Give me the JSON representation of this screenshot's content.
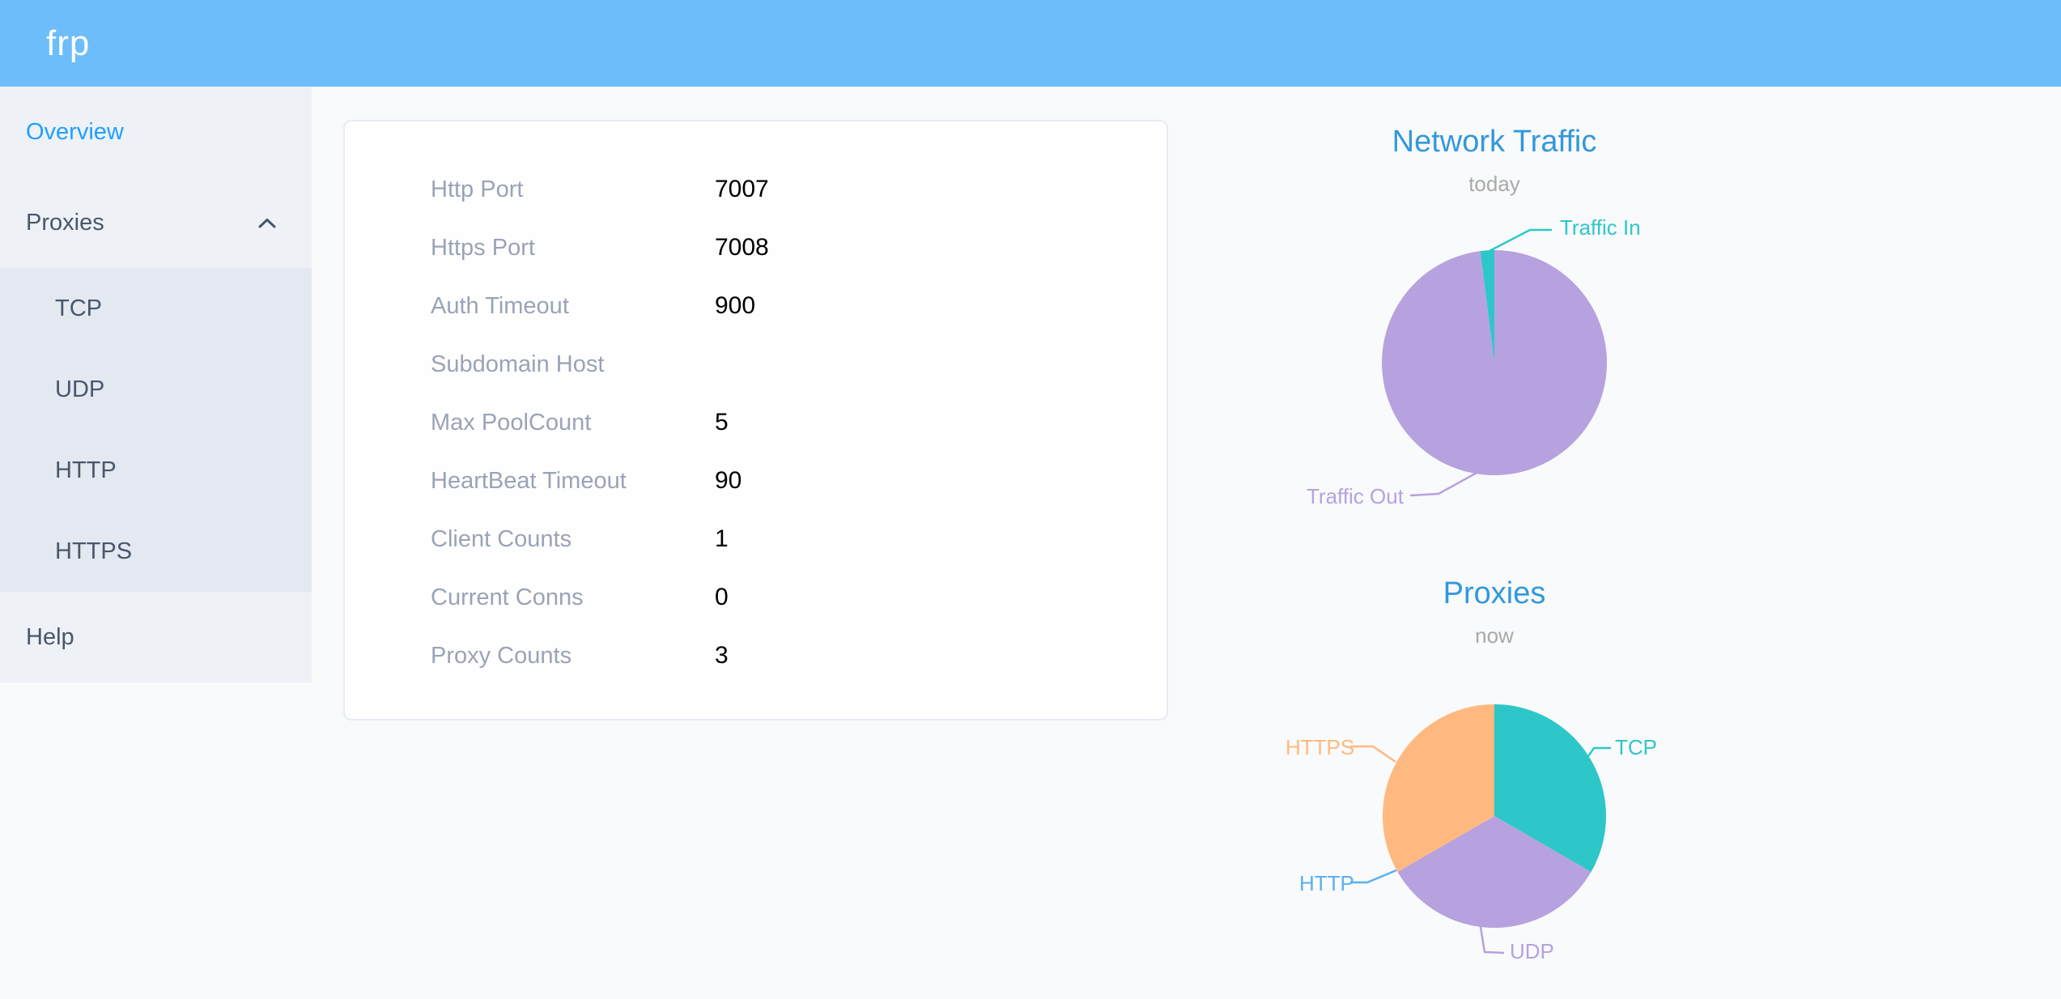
{
  "header": {
    "logo": "frp"
  },
  "sidebar": {
    "items": [
      {
        "label": "Overview",
        "active": true
      },
      {
        "label": "Proxies",
        "expanded": true,
        "children": [
          "TCP",
          "UDP",
          "HTTP",
          "HTTPS"
        ]
      },
      {
        "label": "Help"
      }
    ]
  },
  "server_info": {
    "rows": [
      {
        "label": "Http Port",
        "value": "7007"
      },
      {
        "label": "Https Port",
        "value": "7008"
      },
      {
        "label": "Auth Timeout",
        "value": "900"
      },
      {
        "label": "Subdomain Host",
        "value": ""
      },
      {
        "label": "Max PoolCount",
        "value": "5"
      },
      {
        "label": "HeartBeat Timeout",
        "value": "90"
      },
      {
        "label": "Client Counts",
        "value": "1"
      },
      {
        "label": "Current Conns",
        "value": "0"
      },
      {
        "label": "Proxy Counts",
        "value": "3"
      }
    ]
  },
  "colors": {
    "header_bg": "#6cbdfa",
    "sidebar_bg": "#eef1f6",
    "submenu_bg": "#e4e8f1",
    "menu_text": "#48576a",
    "menu_active_blue": "#20a0ff",
    "chart_title_blue": "#3398dc",
    "chart_subtitle_gray": "#aaaaaa",
    "pie_teal": "#2ec7c9",
    "pie_purple": "#b6a2de",
    "pie_light_blue": "#5ab1ef",
    "pie_orange": "#ffb980"
  },
  "chart_data": [
    {
      "type": "pie",
      "title": "Network Traffic",
      "subtitle": "today",
      "legend_position": "callout-labels",
      "start_angle_deg": -7.2,
      "series": [
        {
          "name": "Traffic In",
          "value": 2,
          "color": "#2ec7c9"
        },
        {
          "name": "Traffic Out",
          "value": 98,
          "color": "#b6a2de"
        }
      ],
      "note": "numeric byte totals are not displayed; slice values are estimated percent shares read from the pie"
    },
    {
      "type": "pie",
      "title": "Proxies",
      "subtitle": "now",
      "legend_position": "callout-labels",
      "start_angle_deg": 0,
      "series": [
        {
          "name": "TCP",
          "value": 1,
          "color": "#2ec7c9"
        },
        {
          "name": "UDP",
          "value": 1,
          "color": "#b6a2de"
        },
        {
          "name": "HTTP",
          "value": 0,
          "color": "#5ab1ef"
        },
        {
          "name": "HTTPS",
          "value": 1,
          "color": "#ffb980"
        }
      ]
    }
  ]
}
